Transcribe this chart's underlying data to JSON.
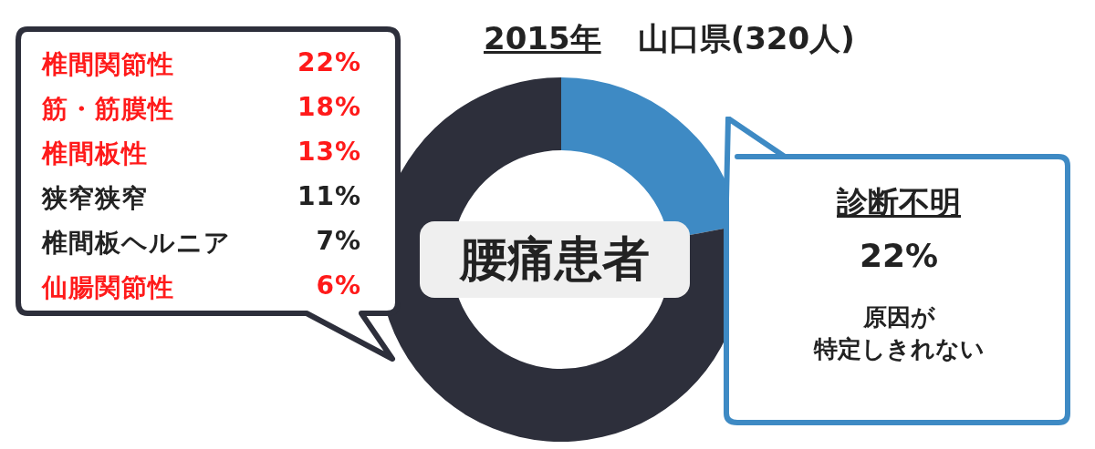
{
  "chart_data": [
    {
      "type": "donut",
      "title": "2015年",
      "subtitle": "山口県(320人)",
      "categories": [
        "診断不明",
        null
      ],
      "values": [
        22,
        78
      ],
      "value_labels": [
        "22%",
        null
      ],
      "colors": [
        "#3e8ac4",
        "#2d2f3b"
      ],
      "legend": false,
      "annotations": [
        "腰痛患者",
        "原因が",
        "特定しきれない"
      ]
    },
    {
      "type": "other",
      "categories": [
        "椎間関節性",
        "筋・筋膜性",
        "椎間板性",
        "狭窄狭窄",
        "椎間板ヘルニア",
        "仙腸関節性"
      ],
      "value_labels": [
        "22%",
        "18%",
        "13%",
        "11%",
        "7%",
        "6%"
      ]
    }
  ]
}
